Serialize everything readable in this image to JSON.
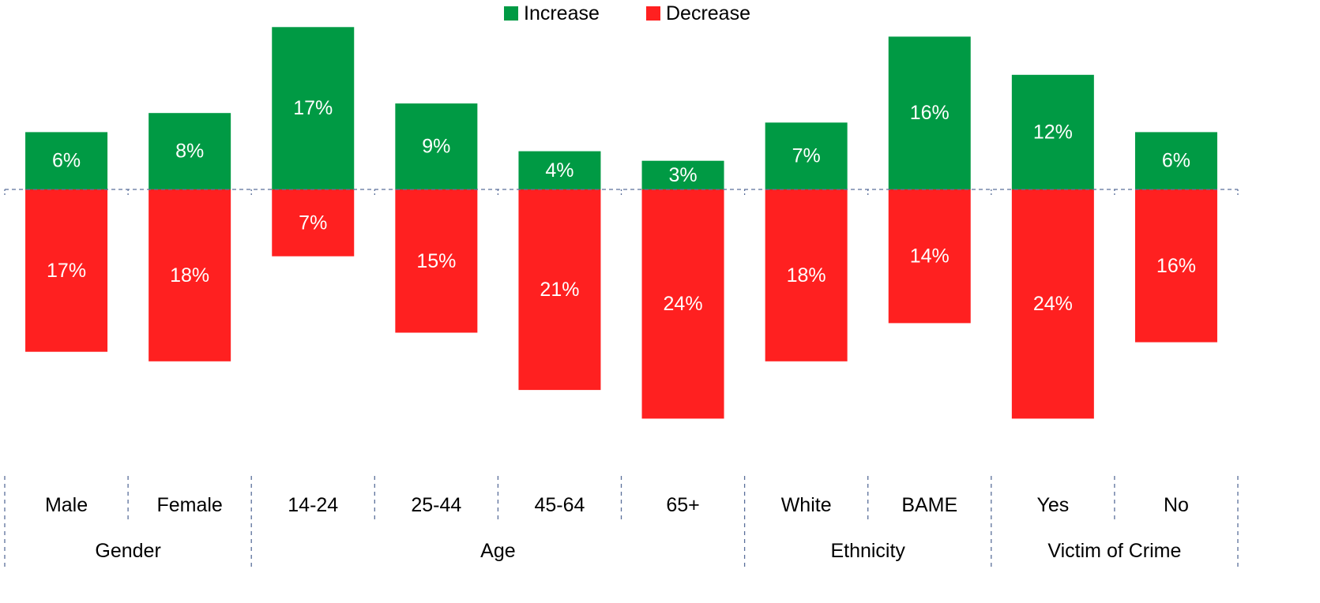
{
  "chart_data": {
    "type": "bar",
    "subtype": "diverging-stacked",
    "legend": {
      "position": "top-center"
    },
    "series": [
      {
        "name": "Increase",
        "color": "#009a44",
        "direction": "up",
        "values": [
          6,
          8,
          17,
          9,
          4,
          3,
          7,
          16,
          12,
          6
        ],
        "labels": [
          "6%",
          "8%",
          "17%",
          "9%",
          "4%",
          "3%",
          "7%",
          "16%",
          "12%",
          "6%"
        ]
      },
      {
        "name": "Decrease",
        "color": "#ff2020",
        "direction": "down",
        "values": [
          17,
          18,
          7,
          15,
          21,
          24,
          18,
          14,
          24,
          16
        ],
        "labels": [
          "17%",
          "18%",
          "7%",
          "15%",
          "21%",
          "24%",
          "18%",
          "14%",
          "24%",
          "16%"
        ]
      }
    ],
    "categories": [
      "Male",
      "Female",
      "14-24",
      "25-44",
      "45-64",
      "65+",
      "White",
      "BAME",
      "Yes",
      "No"
    ],
    "groups": [
      {
        "name": "Gender",
        "size": 2
      },
      {
        "name": "Age",
        "size": 4
      },
      {
        "name": "Ethnicity",
        "size": 2
      },
      {
        "name": "Victim of Crime",
        "size": 2
      }
    ],
    "unit": "%",
    "baseline": 0
  }
}
